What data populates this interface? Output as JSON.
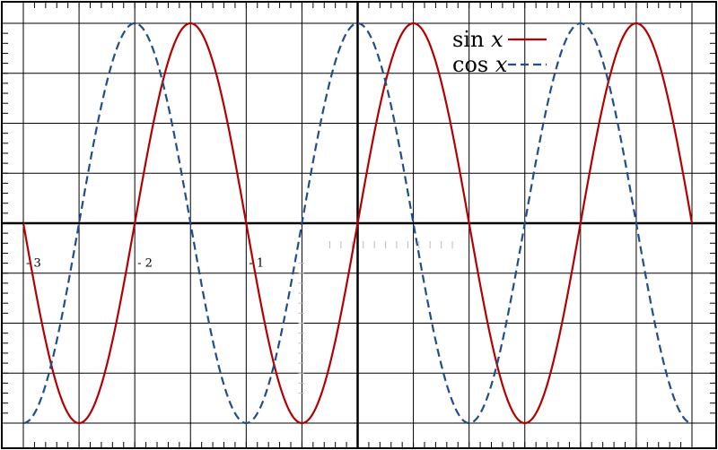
{
  "chart_data": {
    "type": "line",
    "x_unit": "π",
    "xlim": [
      -3,
      3
    ],
    "ylim": [
      -1,
      1
    ],
    "grid": true,
    "x_tick_labels": [
      {
        "x": -3,
        "label": "- 3"
      },
      {
        "x": -2,
        "label": "- 2"
      },
      {
        "x": -1,
        "label": "- 1"
      }
    ],
    "legend": {
      "placement": "top-right"
    },
    "series": [
      {
        "name": "sin",
        "var": "x",
        "func": "sin",
        "color": "#b30000",
        "dash": "solid"
      },
      {
        "name": "cos",
        "var": "x",
        "func": "cos",
        "color": "#1f4e8c",
        "dash": "dashed"
      }
    ]
  }
}
